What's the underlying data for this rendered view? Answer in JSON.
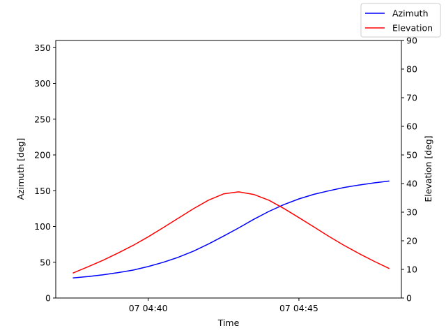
{
  "chart_data": {
    "type": "line",
    "xlabel": "Time",
    "ylabel_left": "Azimuth [deg]",
    "ylabel_right": "Elevation [deg]",
    "x_range_minutes": [
      "04:36:56",
      "04:48:24"
    ],
    "x_ticks": [
      {
        "time": "04:40",
        "label": "07 04:40"
      },
      {
        "time": "04:45",
        "label": "07 04:45"
      }
    ],
    "ylim_left": [
      0,
      360
    ],
    "yticks_left": [
      "0",
      "50",
      "100",
      "150",
      "200",
      "250",
      "300",
      "350"
    ],
    "ylim_right": [
      0,
      90
    ],
    "yticks_right": [
      "0",
      "10",
      "20",
      "30",
      "40",
      "50",
      "60",
      "70",
      "80",
      "90"
    ],
    "grid": false,
    "legend_position": "top-right",
    "series": [
      {
        "name": "Azimuth",
        "axis": "left",
        "color": "#0000ff",
        "points": [
          [
            "04:37:30",
            28
          ],
          [
            "04:38:00",
            30
          ],
          [
            "04:38:30",
            32.5
          ],
          [
            "04:39:00",
            35.5
          ],
          [
            "04:39:30",
            39
          ],
          [
            "04:40:00",
            44
          ],
          [
            "04:40:30",
            50
          ],
          [
            "04:41:00",
            57
          ],
          [
            "04:41:30",
            65.5
          ],
          [
            "04:42:00",
            75.5
          ],
          [
            "04:42:30",
            86.5
          ],
          [
            "04:43:00",
            98
          ],
          [
            "04:43:30",
            110
          ],
          [
            "04:44:00",
            121
          ],
          [
            "04:44:30",
            130.5
          ],
          [
            "04:45:00",
            138.5
          ],
          [
            "04:45:30",
            145
          ],
          [
            "04:46:00",
            150
          ],
          [
            "04:46:30",
            154.5
          ],
          [
            "04:47:00",
            158
          ],
          [
            "04:47:30",
            161
          ],
          [
            "04:48:00",
            163.5
          ]
        ]
      },
      {
        "name": "Elevation",
        "axis": "right",
        "color": "#ff0000",
        "points": [
          [
            "04:37:30",
            8.7
          ],
          [
            "04:38:00",
            10.9
          ],
          [
            "04:38:30",
            13.2
          ],
          [
            "04:39:00",
            15.7
          ],
          [
            "04:39:30",
            18.4
          ],
          [
            "04:40:00",
            21.4
          ],
          [
            "04:40:30",
            24.6
          ],
          [
            "04:41:00",
            27.9
          ],
          [
            "04:41:30",
            31.2
          ],
          [
            "04:42:00",
            34.2
          ],
          [
            "04:42:30",
            36.4
          ],
          [
            "04:43:00",
            37.1
          ],
          [
            "04:43:30",
            36.2
          ],
          [
            "04:44:00",
            34.2
          ],
          [
            "04:44:30",
            31.3
          ],
          [
            "04:45:00",
            28.1
          ],
          [
            "04:45:30",
            24.8
          ],
          [
            "04:46:00",
            21.5
          ],
          [
            "04:46:30",
            18.4
          ],
          [
            "04:47:00",
            15.5
          ],
          [
            "04:47:30",
            12.8
          ],
          [
            "04:48:00",
            10.3
          ]
        ]
      }
    ]
  }
}
